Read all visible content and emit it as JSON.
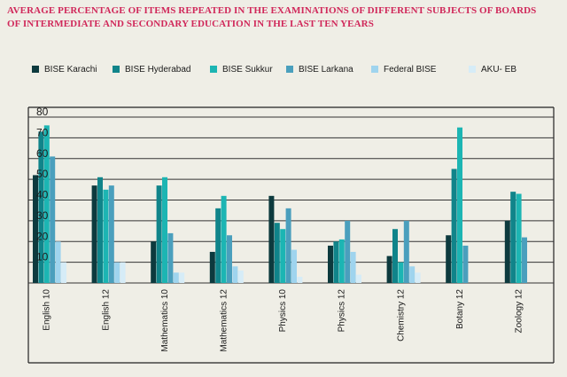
{
  "page": {
    "title": "AVERAGE PERCENTAGE OF ITEMS REPEATED IN THE EXAMINATIONS  OF DIFFERENT SUBJECTS OF BOARDS\nOF INTERMEDIATE AND SECONDARY EDUCATION IN THE LAST TEN YEARS"
  },
  "chart_data": {
    "type": "bar",
    "title": "AVERAGE PERCENTAGE OF ITEMS REPEATED IN THE EXAMINATIONS  OF DIFFERENT SUBJECTS OF BOARDS OF INTERMEDIATE AND SECONDARY EDUCATION IN THE LAST TEN YEARS",
    "xlabel": "",
    "ylabel": "",
    "ylim": [
      0,
      80
    ],
    "yticks": [
      10,
      20,
      30,
      40,
      50,
      60,
      70,
      80
    ],
    "grid": true,
    "legend_position": "top",
    "categories": [
      "English 10",
      "English 12",
      "Mathematics 10",
      "Mathematics 12",
      "Physics 10",
      "Physics 12",
      "Chemistry 12",
      "Botany 12",
      "Zoology 12"
    ],
    "series": [
      {
        "name": "BISE Karachi",
        "color": "#0d3a3e",
        "values": [
          52,
          47,
          20,
          15,
          42,
          18,
          13,
          23,
          30
        ]
      },
      {
        "name": "BISE Hyderabad",
        "color": "#10848a",
        "values": [
          73,
          51,
          47,
          36,
          29,
          20,
          26,
          55,
          44
        ]
      },
      {
        "name": "BISE Sukkur",
        "color": "#1cb5b3",
        "values": [
          76,
          45,
          51,
          42,
          26,
          21,
          10,
          75,
          43
        ]
      },
      {
        "name": "BISE Larkana",
        "color": "#4a9fbd",
        "values": [
          61,
          47,
          24,
          23,
          36,
          30,
          30,
          18,
          22
        ]
      },
      {
        "name": "Federal BISE",
        "color": "#9fd4ee",
        "values": [
          20,
          10,
          5,
          8,
          16,
          15,
          8,
          0,
          0
        ]
      },
      {
        "name": "AKU- EB",
        "color": "#d6ecf7",
        "values": [
          10,
          10,
          5,
          6,
          3,
          4,
          5,
          0,
          0
        ]
      }
    ]
  }
}
